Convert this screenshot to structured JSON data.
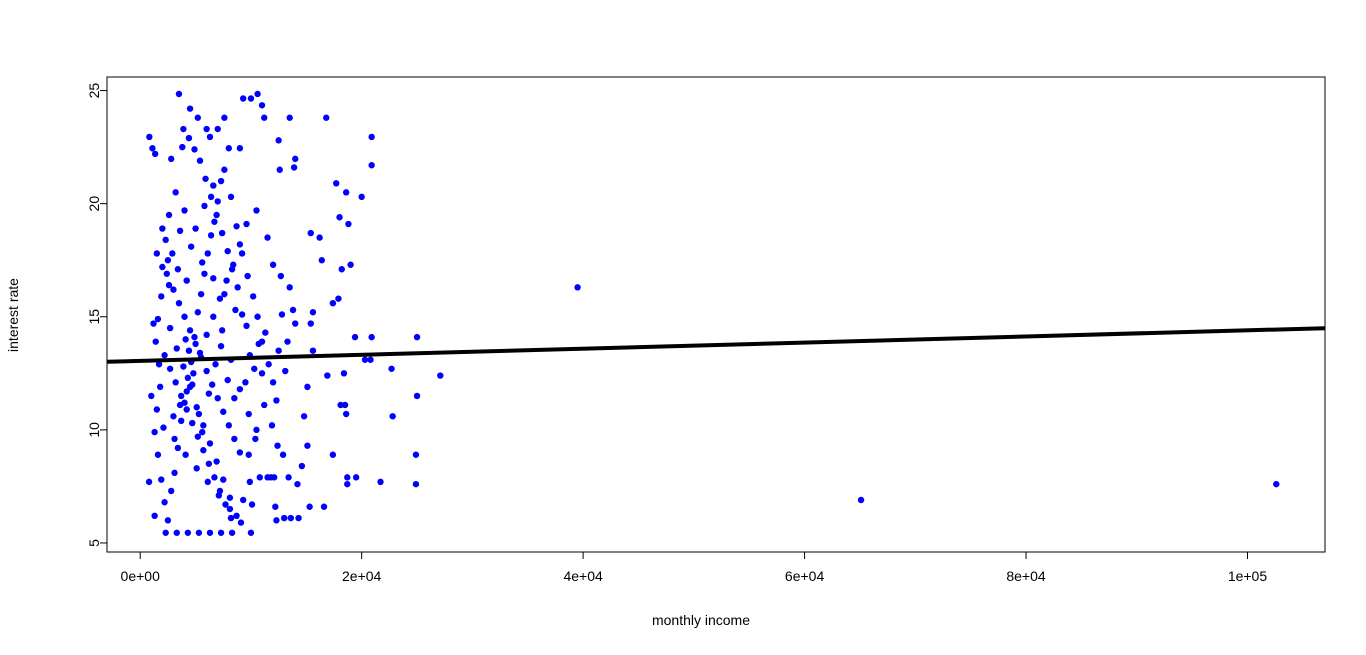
{
  "chart_data": {
    "type": "scatter",
    "title": "",
    "xlabel": "monthly income",
    "ylabel": "interest rate",
    "xlim": [
      -3000,
      107000
    ],
    "ylim": [
      4.6,
      25.6
    ],
    "x_ticks": [
      0,
      20000,
      40000,
      60000,
      80000,
      100000
    ],
    "x_tick_labels": [
      "0e+00",
      "2e+04",
      "4e+04",
      "6e+04",
      "8e+04",
      "1e+05"
    ],
    "y_ticks": [
      5,
      10,
      15,
      20,
      25
    ],
    "y_tick_labels": [
      "5",
      "10",
      "15",
      "20",
      "25"
    ],
    "grid": false,
    "point_color": "#0000ff",
    "line_color": "#000000",
    "regression_line": {
      "intercept": 13.05,
      "slope": 1.35e-05
    },
    "series": [
      {
        "points": [
          [
            825,
            22.95
          ],
          [
            1100,
            22.45
          ],
          [
            1350,
            22.2
          ],
          [
            1500,
            17.8
          ],
          [
            1200,
            14.7
          ],
          [
            1000,
            11.5
          ],
          [
            800,
            7.7
          ],
          [
            1300,
            6.2
          ],
          [
            3500,
            24.85
          ],
          [
            4500,
            24.2
          ],
          [
            3800,
            22.5
          ],
          [
            2800,
            21.98
          ],
          [
            3200,
            20.5
          ],
          [
            4000,
            19.7
          ],
          [
            5200,
            23.8
          ],
          [
            6000,
            23.3
          ],
          [
            6300,
            22.95
          ],
          [
            7000,
            23.3
          ],
          [
            7600,
            23.8
          ],
          [
            8000,
            22.45
          ],
          [
            9000,
            22.45
          ],
          [
            9300,
            24.65
          ],
          [
            10000,
            24.65
          ],
          [
            10600,
            24.85
          ],
          [
            11000,
            24.35
          ],
          [
            11200,
            23.8
          ],
          [
            12500,
            22.8
          ],
          [
            13500,
            23.8
          ],
          [
            14000,
            21.98
          ],
          [
            13900,
            21.6
          ],
          [
            12600,
            21.5
          ],
          [
            10500,
            19.7
          ],
          [
            11500,
            18.5
          ],
          [
            12000,
            17.3
          ],
          [
            12700,
            16.8
          ],
          [
            13500,
            16.3
          ],
          [
            13800,
            15.3
          ],
          [
            14000,
            14.7
          ],
          [
            12500,
            13.5
          ],
          [
            11000,
            12.5
          ],
          [
            11200,
            11.1
          ],
          [
            10500,
            10.0
          ],
          [
            9800,
            8.9
          ],
          [
            11800,
            7.9
          ],
          [
            12200,
            6.6
          ],
          [
            12300,
            6.0
          ],
          [
            13000,
            6.1
          ],
          [
            13600,
            6.1
          ],
          [
            14300,
            6.1
          ],
          [
            15300,
            6.6
          ],
          [
            15100,
            9.3
          ],
          [
            14800,
            10.6
          ],
          [
            15100,
            11.9
          ],
          [
            15600,
            13.5
          ],
          [
            15400,
            14.7
          ],
          [
            15600,
            15.2
          ],
          [
            15400,
            18.7
          ],
          [
            16400,
            17.5
          ],
          [
            16200,
            18.5
          ],
          [
            16600,
            6.6
          ],
          [
            16800,
            23.8
          ],
          [
            16900,
            12.4
          ],
          [
            17400,
            15.6
          ],
          [
            17400,
            8.9
          ],
          [
            17700,
            20.9
          ],
          [
            17900,
            15.8
          ],
          [
            18000,
            19.4
          ],
          [
            18100,
            11.1
          ],
          [
            18200,
            17.1
          ],
          [
            18400,
            12.5
          ],
          [
            18600,
            20.5
          ],
          [
            18700,
            7.9
          ],
          [
            18800,
            19.1
          ],
          [
            18700,
            7.6
          ],
          [
            18500,
            11.1
          ],
          [
            18600,
            10.7
          ],
          [
            19000,
            17.3
          ],
          [
            19400,
            14.1
          ],
          [
            19500,
            7.9
          ],
          [
            20000,
            20.3
          ],
          [
            20300,
            13.1
          ],
          [
            20800,
            13.1
          ],
          [
            20900,
            14.1
          ],
          [
            20900,
            21.7
          ],
          [
            20900,
            22.95
          ],
          [
            21700,
            7.7
          ],
          [
            22700,
            12.7
          ],
          [
            22800,
            10.6
          ],
          [
            25000,
            11.5
          ],
          [
            24900,
            8.9
          ],
          [
            24900,
            7.6
          ],
          [
            25000,
            14.1
          ],
          [
            27100,
            12.4
          ],
          [
            39500,
            16.3
          ],
          [
            65100,
            6.9
          ],
          [
            102600,
            7.6
          ],
          [
            2000,
            18.9
          ],
          [
            2500,
            17.5
          ],
          [
            3000,
            16.2
          ],
          [
            3500,
            15.6
          ],
          [
            4000,
            15.0
          ],
          [
            4500,
            14.4
          ],
          [
            5000,
            13.8
          ],
          [
            5500,
            13.2
          ],
          [
            6000,
            12.6
          ],
          [
            6500,
            12.0
          ],
          [
            7000,
            11.4
          ],
          [
            7500,
            10.8
          ],
          [
            8000,
            10.2
          ],
          [
            8500,
            9.6
          ],
          [
            9000,
            9.0
          ],
          [
            2200,
            13.3
          ],
          [
            2700,
            12.7
          ],
          [
            3200,
            12.1
          ],
          [
            3700,
            11.5
          ],
          [
            4200,
            10.9
          ],
          [
            4700,
            10.3
          ],
          [
            5200,
            9.7
          ],
          [
            5700,
            9.1
          ],
          [
            6200,
            8.5
          ],
          [
            6700,
            7.9
          ],
          [
            7200,
            7.3
          ],
          [
            7700,
            6.7
          ],
          [
            8200,
            6.1
          ],
          [
            2300,
            5.45
          ],
          [
            3300,
            5.45
          ],
          [
            4300,
            5.45
          ],
          [
            5300,
            5.45
          ],
          [
            6300,
            5.45
          ],
          [
            7300,
            5.45
          ],
          [
            8300,
            5.45
          ],
          [
            10000,
            5.45
          ],
          [
            2600,
            19.5
          ],
          [
            3600,
            18.8
          ],
          [
            4600,
            18.1
          ],
          [
            5600,
            17.4
          ],
          [
            6600,
            16.7
          ],
          [
            7600,
            16.0
          ],
          [
            8600,
            15.3
          ],
          [
            9600,
            14.6
          ],
          [
            2100,
            10.1
          ],
          [
            3100,
            9.6
          ],
          [
            4100,
            8.9
          ],
          [
            5100,
            8.3
          ],
          [
            6100,
            7.7
          ],
          [
            7100,
            7.1
          ],
          [
            8100,
            6.5
          ],
          [
            9100,
            5.9
          ],
          [
            10100,
            6.7
          ],
          [
            10800,
            7.9
          ],
          [
            11500,
            7.9
          ],
          [
            12100,
            7.9
          ],
          [
            9500,
            12.1
          ],
          [
            10300,
            12.7
          ],
          [
            9900,
            13.3
          ],
          [
            10700,
            13.8
          ],
          [
            11300,
            14.3
          ],
          [
            9200,
            15.1
          ],
          [
            8800,
            16.3
          ],
          [
            8300,
            17.1
          ],
          [
            7900,
            17.9
          ],
          [
            7400,
            18.7
          ],
          [
            6900,
            19.5
          ],
          [
            6400,
            20.3
          ],
          [
            5900,
            21.1
          ],
          [
            5400,
            21.9
          ],
          [
            4900,
            22.4
          ],
          [
            4400,
            22.9
          ],
          [
            3900,
            23.3
          ],
          [
            2900,
            17.8
          ],
          [
            2400,
            16.9
          ],
          [
            1900,
            15.9
          ],
          [
            1600,
            14.9
          ],
          [
            1400,
            13.9
          ],
          [
            1700,
            12.9
          ],
          [
            1800,
            11.9
          ],
          [
            1500,
            10.9
          ],
          [
            1300,
            9.9
          ],
          [
            1600,
            8.9
          ],
          [
            1900,
            7.8
          ],
          [
            2200,
            6.8
          ],
          [
            2500,
            6.0
          ],
          [
            2800,
            7.3
          ],
          [
            3100,
            8.1
          ],
          [
            3400,
            9.2
          ],
          [
            3700,
            10.4
          ],
          [
            4000,
            11.2
          ],
          [
            4300,
            12.3
          ],
          [
            4600,
            13.0
          ],
          [
            4900,
            14.1
          ],
          [
            5200,
            15.2
          ],
          [
            5500,
            16.0
          ],
          [
            5800,
            16.9
          ],
          [
            6100,
            17.8
          ],
          [
            6400,
            18.6
          ],
          [
            6700,
            19.2
          ],
          [
            7000,
            20.1
          ],
          [
            7300,
            21.0
          ],
          [
            7600,
            21.5
          ],
          [
            8200,
            20.3
          ],
          [
            8700,
            19.0
          ],
          [
            9200,
            17.8
          ],
          [
            9700,
            16.8
          ],
          [
            10200,
            15.9
          ],
          [
            10600,
            15.0
          ],
          [
            11000,
            13.9
          ],
          [
            11600,
            12.9
          ],
          [
            12000,
            12.1
          ],
          [
            12300,
            11.3
          ],
          [
            11900,
            10.2
          ],
          [
            12400,
            9.3
          ],
          [
            12900,
            8.9
          ],
          [
            13400,
            7.9
          ],
          [
            14200,
            7.6
          ],
          [
            14600,
            8.4
          ],
          [
            13100,
            12.6
          ],
          [
            13300,
            13.9
          ],
          [
            12800,
            15.1
          ],
          [
            2700,
            14.5
          ],
          [
            3300,
            13.6
          ],
          [
            3900,
            12.8
          ],
          [
            4500,
            11.9
          ],
          [
            5100,
            11.0
          ],
          [
            5700,
            10.2
          ],
          [
            6300,
            9.4
          ],
          [
            6900,
            8.6
          ],
          [
            7500,
            7.8
          ],
          [
            8100,
            7.0
          ],
          [
            8700,
            6.2
          ],
          [
            9300,
            6.9
          ],
          [
            9900,
            7.7
          ],
          [
            3000,
            10.6
          ],
          [
            3600,
            11.1
          ],
          [
            4200,
            11.7
          ],
          [
            4800,
            12.5
          ],
          [
            5400,
            13.4
          ],
          [
            6000,
            14.2
          ],
          [
            6600,
            15.0
          ],
          [
            7200,
            15.8
          ],
          [
            7800,
            16.6
          ],
          [
            8400,
            17.3
          ],
          [
            9000,
            18.2
          ],
          [
            9600,
            19.1
          ],
          [
            2000,
            17.2
          ],
          [
            2300,
            18.4
          ],
          [
            2600,
            16.4
          ],
          [
            3400,
            17.1
          ],
          [
            4200,
            16.6
          ],
          [
            5000,
            18.9
          ],
          [
            5800,
            19.9
          ],
          [
            6600,
            20.8
          ],
          [
            7400,
            14.4
          ],
          [
            8200,
            13.1
          ],
          [
            9000,
            11.8
          ],
          [
            9800,
            10.7
          ],
          [
            10400,
            9.6
          ],
          [
            4100,
            14.0
          ],
          [
            4400,
            13.5
          ],
          [
            4700,
            12.0
          ],
          [
            5300,
            10.7
          ],
          [
            5600,
            9.9
          ],
          [
            6200,
            11.6
          ],
          [
            6800,
            12.9
          ],
          [
            7300,
            13.7
          ],
          [
            7900,
            12.2
          ],
          [
            8500,
            11.4
          ]
        ]
      }
    ]
  }
}
